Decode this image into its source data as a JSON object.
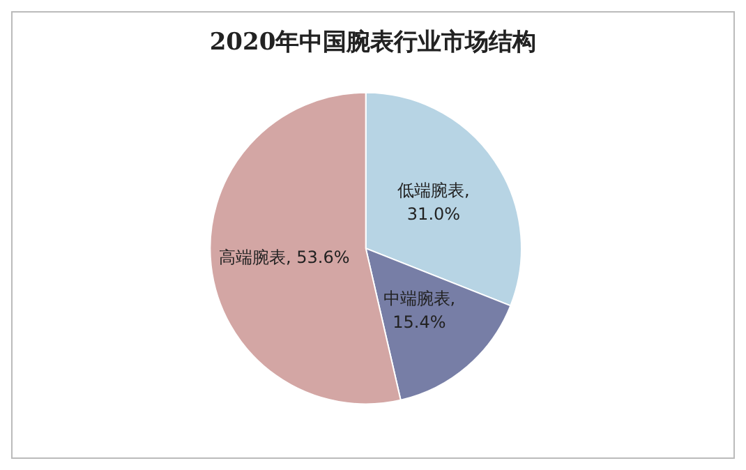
{
  "chart_data": {
    "type": "pie",
    "title": "2020年中国腕表行业市场结构",
    "categories": [
      "低端腕表",
      "中端腕表",
      "高端腕表"
    ],
    "values": [
      31.0,
      15.4,
      53.6
    ],
    "colors": [
      "#b7d4e4",
      "#777ea6",
      "#d3a6a4"
    ],
    "value_labels": [
      ",\n31.0%",
      ",\n15.4%",
      ", 53.6%"
    ],
    "legend": false
  }
}
